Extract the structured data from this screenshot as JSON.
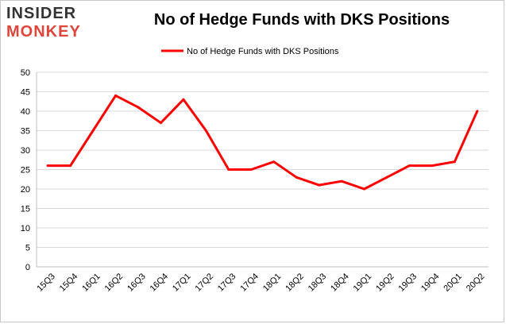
{
  "logo": {
    "line1": "INSIDER",
    "line2": "MONKEY"
  },
  "chart_data": {
    "type": "line",
    "title": "No of Hedge Funds with DKS Positions",
    "categories": [
      "15Q3",
      "15Q4",
      "16Q1",
      "16Q2",
      "16Q3",
      "16Q4",
      "17Q1",
      "17Q2",
      "17Q3",
      "17Q4",
      "18Q1",
      "18Q2",
      "18Q3",
      "18Q4",
      "19Q1",
      "19Q2",
      "19Q3",
      "19Q4",
      "20Q1",
      "20Q2"
    ],
    "series": [
      {
        "name": "No of Hedge Funds with DKS Positions",
        "values": [
          26,
          26,
          35,
          44,
          41,
          37,
          43,
          35,
          25,
          25,
          27,
          23,
          21,
          22,
          20,
          23,
          26,
          26,
          27,
          40
        ],
        "color": "#ff0000"
      }
    ],
    "ylim": [
      0,
      50
    ],
    "yticks": [
      0,
      5,
      10,
      15,
      20,
      25,
      30,
      35,
      40,
      45,
      50
    ],
    "xlabel": "",
    "ylabel": "",
    "grid": true,
    "legend_position": "top-center"
  }
}
